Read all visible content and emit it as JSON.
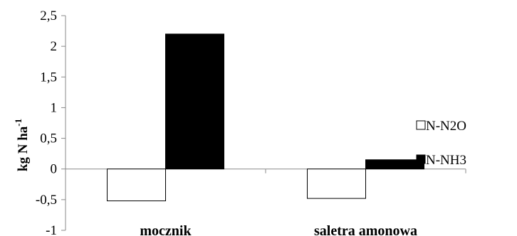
{
  "chart_data": {
    "type": "bar",
    "categories": [
      "mocznik",
      "saletra amonowa"
    ],
    "series": [
      {
        "name": "N-N2O",
        "values": [
          -0.52,
          -0.48
        ],
        "color": "#ffffff",
        "stroke": "#000000"
      },
      {
        "name": "N-NH3",
        "values": [
          2.2,
          0.15
        ],
        "color": "#000000",
        "stroke": "#000000"
      }
    ],
    "ylabel_main": "kg N ha",
    "ylabel_sup": "-1",
    "ylim": [
      -1,
      2.5
    ],
    "yticks": [
      "2,5",
      "2",
      "1,5",
      "1",
      "0,5",
      "0",
      "-0,5",
      "-1"
    ],
    "ytick_values": [
      2.5,
      2,
      1.5,
      1,
      0.5,
      0,
      -0.5,
      -1
    ],
    "grid": false,
    "legend": "right"
  }
}
